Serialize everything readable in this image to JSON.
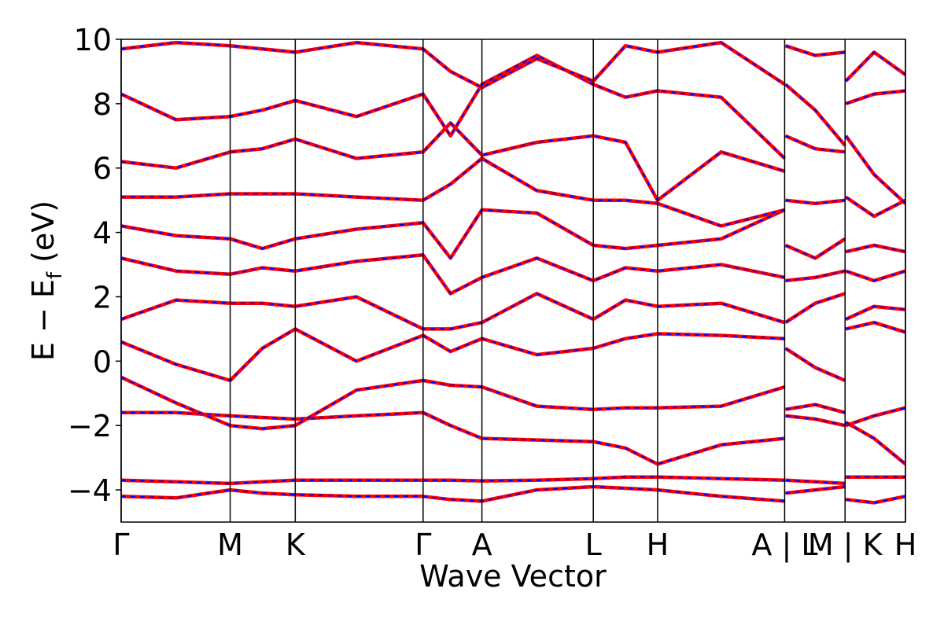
{
  "chart_data": {
    "type": "line",
    "xlabel": "Wave Vector",
    "ylabel": [
      "E − E",
      "f",
      " (eV)"
    ],
    "xlim": [
      0,
      1
    ],
    "xticks": [
      {
        "value": 0,
        "label": "Γ"
      },
      {
        "value": 0.139,
        "label": "M"
      },
      {
        "value": 0.222,
        "label": "K"
      },
      {
        "value": 0.385,
        "label": "Γ"
      },
      {
        "value": 0.46,
        "label": "A"
      },
      {
        "value": 0.602,
        "label": "L"
      },
      {
        "value": 0.684,
        "label": "H"
      },
      {
        "value": 0.846,
        "label": "A | L"
      },
      {
        "value": 0.923,
        "label": "M | K"
      },
      {
        "value": 1,
        "label": "H"
      }
    ],
    "ylim": [
      -5,
      10
    ],
    "yticks": [
      {
        "value": -4,
        "label": "−4"
      },
      {
        "value": -2,
        "label": "−2"
      },
      0,
      2,
      4,
      6,
      8,
      10
    ],
    "overlay_color": "#0000ff",
    "x": [
      0,
      0.07,
      0.139,
      0.18,
      0.222,
      0.3,
      0.385,
      0.42,
      0.46,
      0.53,
      0.602,
      0.643,
      0.684,
      0.765,
      0.846,
      0.8465,
      0.847,
      0.885,
      0.923,
      0.9235,
      0.924,
      0.96,
      1
    ],
    "series": [
      {
        "color": "#ff0000",
        "values": [
          -3.7,
          -3.75,
          -3.8,
          -3.75,
          -3.7,
          -3.7,
          -3.7,
          -3.7,
          -3.72,
          -3.7,
          -3.65,
          -3.6,
          -3.6,
          -3.65,
          -3.7,
          null,
          -3.7,
          -3.75,
          -3.8,
          null,
          -3.6,
          -3.6,
          -3.6
        ]
      },
      {
        "color": "#ff0000",
        "values": [
          -4.2,
          -4.25,
          -4.0,
          -4.1,
          -4.15,
          -4.2,
          -4.2,
          -4.3,
          -4.35,
          -4.0,
          -3.9,
          -3.95,
          -4.0,
          -4.2,
          -4.35,
          null,
          -4.1,
          -4.0,
          -3.9,
          null,
          -4.3,
          -4.4,
          -4.2
        ]
      },
      {
        "color": "#ff0000",
        "values": [
          -1.6,
          -1.6,
          -1.7,
          -1.75,
          -1.8,
          -1.7,
          -1.6,
          -2.0,
          -2.4,
          -2.45,
          -2.5,
          -2.7,
          -3.2,
          -2.6,
          -2.4,
          null,
          -1.7,
          -1.8,
          -2.0,
          null,
          -2.0,
          -1.7,
          -1.45
        ]
      },
      {
        "color": "#ff0000",
        "values": [
          -0.5,
          -1.3,
          -2.0,
          -2.1,
          -2.0,
          -0.9,
          -0.6,
          -0.75,
          -0.8,
          -1.4,
          -1.5,
          -1.45,
          -1.45,
          -1.4,
          -0.8,
          null,
          -1.5,
          -1.35,
          -1.6,
          null,
          -1.9,
          -2.4,
          -3.2
        ]
      },
      {
        "color": "#ff0000",
        "values": [
          0.6,
          -0.1,
          -0.6,
          0.4,
          1.0,
          0.0,
          0.8,
          0.3,
          0.7,
          0.2,
          0.4,
          0.7,
          0.85,
          0.8,
          0.7,
          null,
          0.4,
          -0.2,
          -0.6,
          null,
          1.0,
          1.2,
          0.9
        ]
      },
      {
        "color": "#ff0000",
        "values": [
          1.3,
          1.9,
          1.8,
          1.8,
          1.7,
          2.0,
          1.0,
          1.0,
          1.2,
          2.1,
          1.3,
          1.9,
          1.7,
          1.8,
          1.2,
          null,
          1.2,
          1.8,
          2.1,
          null,
          1.3,
          1.7,
          1.6
        ]
      },
      {
        "color": "#ff0000",
        "values": [
          3.2,
          2.8,
          2.7,
          2.9,
          2.8,
          3.1,
          3.3,
          2.1,
          2.6,
          3.2,
          2.5,
          2.9,
          2.8,
          3.0,
          2.6,
          null,
          2.5,
          2.6,
          2.8,
          null,
          2.8,
          2.5,
          2.8
        ]
      },
      {
        "color": "#ff0000",
        "values": [
          4.2,
          3.9,
          3.8,
          3.5,
          3.8,
          4.1,
          4.3,
          3.2,
          4.7,
          4.6,
          3.6,
          3.5,
          3.6,
          3.8,
          4.7,
          null,
          3.6,
          3.2,
          3.8,
          null,
          3.4,
          3.6,
          3.4
        ]
      },
      {
        "color": "#ff0000",
        "values": [
          5.1,
          5.1,
          5.2,
          5.2,
          5.2,
          5.1,
          5.0,
          5.5,
          6.3,
          5.3,
          5.0,
          5.0,
          4.9,
          4.2,
          4.7,
          null,
          5.0,
          4.9,
          5.0,
          null,
          5.1,
          4.5,
          5.0
        ]
      },
      {
        "color": "#ff0000",
        "values": [
          6.2,
          6.0,
          6.5,
          6.6,
          6.9,
          6.3,
          6.5,
          7.4,
          6.4,
          6.8,
          7.0,
          6.8,
          5.0,
          6.5,
          5.9,
          null,
          7.0,
          6.6,
          6.5,
          null,
          7.0,
          5.8,
          4.9
        ]
      },
      {
        "color": "#ff0000",
        "values": [
          8.3,
          7.5,
          7.6,
          7.8,
          8.1,
          7.6,
          8.3,
          7.0,
          8.6,
          9.5,
          8.6,
          8.2,
          8.4,
          8.2,
          6.3,
          null,
          8.6,
          7.8,
          6.7,
          null,
          8.0,
          8.3,
          8.4
        ]
      },
      {
        "color": "#ff0000",
        "values": [
          9.7,
          9.9,
          9.8,
          9.7,
          9.6,
          9.9,
          9.7,
          9.0,
          8.5,
          9.4,
          8.7,
          9.8,
          9.6,
          9.9,
          8.6,
          null,
          9.8,
          9.5,
          9.6,
          null,
          8.7,
          9.6,
          8.9
        ]
      }
    ]
  }
}
